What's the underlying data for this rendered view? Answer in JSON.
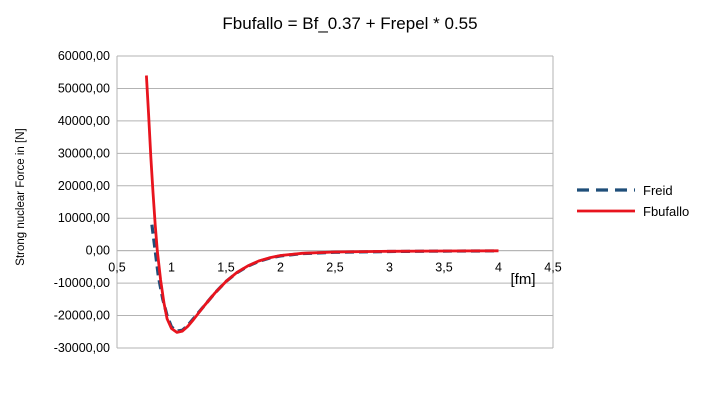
{
  "chart_data": {
    "type": "line",
    "title": "Fbufallo = Bf_0.37 + Frepel * 0.55",
    "xlabel": "[fm]",
    "ylabel": "Strong nuclear Force in [N]",
    "xlim": [
      0.5,
      4.5
    ],
    "ylim": [
      -30000,
      60000
    ],
    "x_ticks": [
      0.5,
      1,
      1.5,
      2,
      2.5,
      3,
      3.5,
      4,
      4.5
    ],
    "x_tick_labels": [
      "0,5",
      "1",
      "1,5",
      "2",
      "2,5",
      "3",
      "3,5",
      "4",
      "4,5"
    ],
    "y_ticks": [
      60000,
      50000,
      40000,
      30000,
      20000,
      10000,
      0,
      -10000,
      -20000,
      -30000
    ],
    "y_tick_labels": [
      "60000,00",
      "50000,00",
      "40000,00",
      "30000,00",
      "20000,00",
      "10000,00",
      "0,00",
      "-10000,00",
      "-20000,00",
      "-30000,00"
    ],
    "grid": "horizontal",
    "legend_position": "right",
    "series": [
      {
        "name": "Freid",
        "color": "#1f4e79",
        "style": "dashed",
        "x": [
          0.82,
          0.85,
          0.88,
          0.92,
          0.96,
          1.0,
          1.05,
          1.1,
          1.15,
          1.2,
          1.3,
          1.4,
          1.5,
          1.6,
          1.7,
          1.8,
          1.9,
          2.0,
          2.2,
          2.5,
          3.0,
          3.5,
          4.0
        ],
        "values": [
          8000,
          0,
          -8000,
          -15000,
          -20000,
          -23500,
          -24800,
          -24500,
          -23000,
          -21000,
          -17000,
          -13000,
          -9500,
          -6800,
          -4800,
          -3300,
          -2300,
          -1600,
          -900,
          -500,
          -250,
          -120,
          -60
        ]
      },
      {
        "name": "Fbufallo",
        "color": "#e8141e",
        "style": "solid",
        "x": [
          0.77,
          0.79,
          0.81,
          0.83,
          0.85,
          0.87,
          0.9,
          0.93,
          0.96,
          1.0,
          1.05,
          1.1,
          1.15,
          1.2,
          1.3,
          1.4,
          1.5,
          1.6,
          1.7,
          1.8,
          1.9,
          2.0,
          2.2,
          2.5,
          3.0,
          3.5,
          4.0
        ],
        "values": [
          54000,
          42000,
          29000,
          18000,
          8000,
          0,
          -9000,
          -16000,
          -21000,
          -24000,
          -25200,
          -24800,
          -23300,
          -21300,
          -17000,
          -13000,
          -9500,
          -6700,
          -4700,
          -3200,
          -2200,
          -1500,
          -800,
          -400,
          -200,
          -100,
          -50
        ]
      }
    ]
  }
}
